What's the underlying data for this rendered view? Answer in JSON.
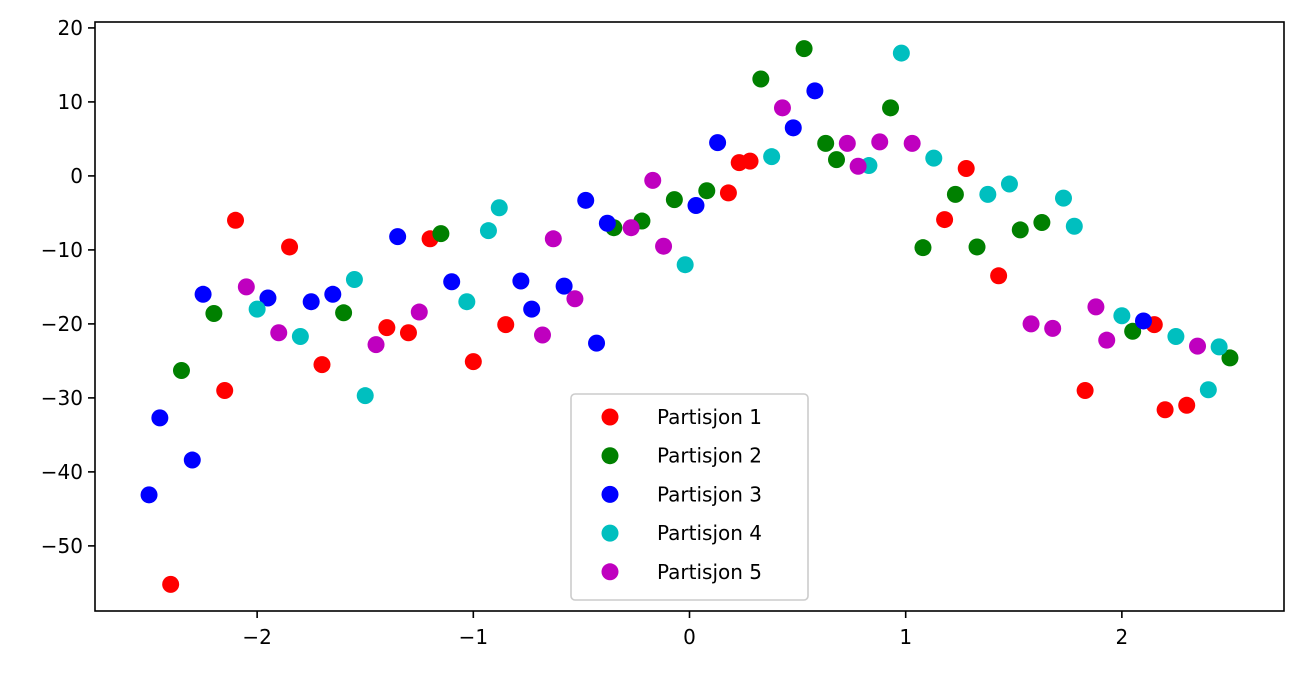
{
  "chart_data": {
    "type": "scatter",
    "xlim": [
      -2.75,
      2.75
    ],
    "ylim": [
      -58.8,
      20.8
    ],
    "x_ticks": [
      -2,
      -1,
      0,
      1,
      2
    ],
    "y_ticks": [
      20,
      10,
      0,
      -10,
      -20,
      -30,
      -40,
      -50
    ],
    "grid": false,
    "legend_position": "lower center",
    "series": [
      {
        "name": "Partisjon 1",
        "color": "#ff0000",
        "points": [
          [
            -2.4,
            -55.2
          ],
          [
            -2.15,
            -29.0
          ],
          [
            -2.1,
            -6.0
          ],
          [
            -1.85,
            -9.6
          ],
          [
            -1.7,
            -25.5
          ],
          [
            -1.4,
            -20.5
          ],
          [
            -1.3,
            -21.2
          ],
          [
            -1.2,
            -8.5
          ],
          [
            -1.0,
            -25.1
          ],
          [
            -0.85,
            -20.1
          ],
          [
            0.18,
            -2.3
          ],
          [
            0.23,
            1.8
          ],
          [
            0.28,
            2.0
          ],
          [
            1.18,
            -5.9
          ],
          [
            1.28,
            1.0
          ],
          [
            1.43,
            -13.5
          ],
          [
            1.83,
            -29.0
          ],
          [
            2.15,
            -20.1
          ],
          [
            2.2,
            -31.6
          ],
          [
            2.3,
            -31.0
          ]
        ]
      },
      {
        "name": "Partisjon 2",
        "color": "#008000",
        "points": [
          [
            -2.35,
            -26.3
          ],
          [
            -2.2,
            -18.6
          ],
          [
            -1.6,
            -18.5
          ],
          [
            -1.15,
            -7.8
          ],
          [
            -0.35,
            -7.0
          ],
          [
            -0.22,
            -6.1
          ],
          [
            -0.07,
            -3.2
          ],
          [
            0.08,
            -2.0
          ],
          [
            0.33,
            13.1
          ],
          [
            0.53,
            17.2
          ],
          [
            0.63,
            4.4
          ],
          [
            0.68,
            2.2
          ],
          [
            0.93,
            9.2
          ],
          [
            1.08,
            -9.7
          ],
          [
            1.23,
            -2.5
          ],
          [
            1.33,
            -9.6
          ],
          [
            1.53,
            -7.3
          ],
          [
            1.63,
            -6.3
          ],
          [
            2.05,
            -21.0
          ],
          [
            2.5,
            -24.6
          ]
        ]
      },
      {
        "name": "Partisjon 3",
        "color": "#0000ff",
        "points": [
          [
            -2.5,
            -43.1
          ],
          [
            -2.45,
            -32.7
          ],
          [
            -2.3,
            -38.4
          ],
          [
            -2.25,
            -16.0
          ],
          [
            -1.95,
            -16.5
          ],
          [
            -1.75,
            -17.0
          ],
          [
            -1.65,
            -16.0
          ],
          [
            -1.35,
            -8.2
          ],
          [
            -1.1,
            -14.3
          ],
          [
            -0.78,
            -14.2
          ],
          [
            -0.73,
            -18.0
          ],
          [
            -0.58,
            -14.9
          ],
          [
            -0.48,
            -3.3
          ],
          [
            -0.43,
            -22.6
          ],
          [
            -0.38,
            -6.4
          ],
          [
            0.03,
            -4.0
          ],
          [
            0.13,
            4.5
          ],
          [
            0.48,
            6.5
          ],
          [
            0.58,
            11.5
          ],
          [
            2.1,
            -19.6
          ]
        ]
      },
      {
        "name": "Partisjon 4",
        "color": "#00bfbf",
        "points": [
          [
            -2.0,
            -18.0
          ],
          [
            -1.8,
            -21.7
          ],
          [
            -1.55,
            -14.0
          ],
          [
            -1.5,
            -29.7
          ],
          [
            -1.03,
            -17.0
          ],
          [
            -0.93,
            -7.4
          ],
          [
            -0.88,
            -4.3
          ],
          [
            -0.02,
            -12.0
          ],
          [
            0.38,
            2.6
          ],
          [
            0.83,
            1.4
          ],
          [
            0.98,
            16.6
          ],
          [
            1.13,
            2.4
          ],
          [
            1.38,
            -2.5
          ],
          [
            1.48,
            -1.1
          ],
          [
            1.73,
            -3.0
          ],
          [
            1.78,
            -6.8
          ],
          [
            2.0,
            -18.9
          ],
          [
            2.25,
            -21.7
          ],
          [
            2.4,
            -28.9
          ],
          [
            2.45,
            -23.1
          ]
        ]
      },
      {
        "name": "Partisjon 5",
        "color": "#bf00bf",
        "points": [
          [
            -2.05,
            -15.0
          ],
          [
            -1.9,
            -21.2
          ],
          [
            -1.45,
            -22.8
          ],
          [
            -1.25,
            -18.4
          ],
          [
            -0.68,
            -21.5
          ],
          [
            -0.63,
            -8.5
          ],
          [
            -0.53,
            -16.6
          ],
          [
            -0.27,
            -7.0
          ],
          [
            -0.17,
            -0.6
          ],
          [
            -0.12,
            -9.5
          ],
          [
            0.43,
            9.2
          ],
          [
            0.73,
            4.4
          ],
          [
            0.78,
            1.3
          ],
          [
            0.88,
            4.6
          ],
          [
            1.03,
            4.4
          ],
          [
            1.58,
            -20.0
          ],
          [
            1.68,
            -20.6
          ],
          [
            1.88,
            -17.7
          ],
          [
            1.93,
            -22.2
          ],
          [
            2.35,
            -23.0
          ]
        ]
      }
    ]
  }
}
